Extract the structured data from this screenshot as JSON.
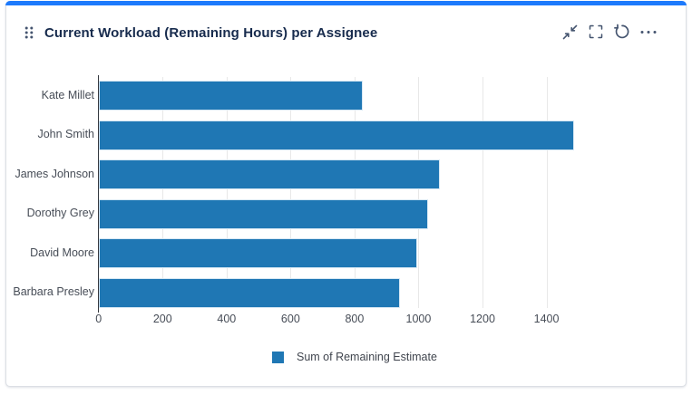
{
  "header": {
    "title": "Current Workload (Remaining Hours) per Assignee",
    "accent_color": "#1d7afc",
    "drag_handle_icon": "drag-grip-dots",
    "toolbar": [
      {
        "name": "minimize",
        "icon": "collapse-diagonal-arrows-icon"
      },
      {
        "name": "fullscreen",
        "icon": "corner-brackets-icon"
      },
      {
        "name": "refresh",
        "icon": "circular-arrow-icon"
      },
      {
        "name": "more-options",
        "icon": "ellipsis-icon"
      }
    ]
  },
  "chart_data": {
    "type": "bar",
    "orientation": "horizontal",
    "title": "",
    "xlabel": "",
    "ylabel": "",
    "categories": [
      "Kate Millet",
      "John Smith",
      "James Johnson",
      "Dorothy Grey",
      "David Moore",
      "Barbara Presley"
    ],
    "series": [
      {
        "name": "Sum of Remaining Estimate",
        "values": [
          825,
          1485,
          1065,
          1030,
          995,
          940
        ],
        "color": "#1f77b4"
      }
    ],
    "xticks": [
      0,
      200,
      400,
      600,
      800,
      1000,
      1200,
      1400
    ],
    "xlim": [
      0,
      1800
    ],
    "grid": true,
    "legend_position": "bottom"
  },
  "legend": {
    "label": "Sum of Remaining Estimate",
    "swatch_color": "#1f77b4"
  }
}
